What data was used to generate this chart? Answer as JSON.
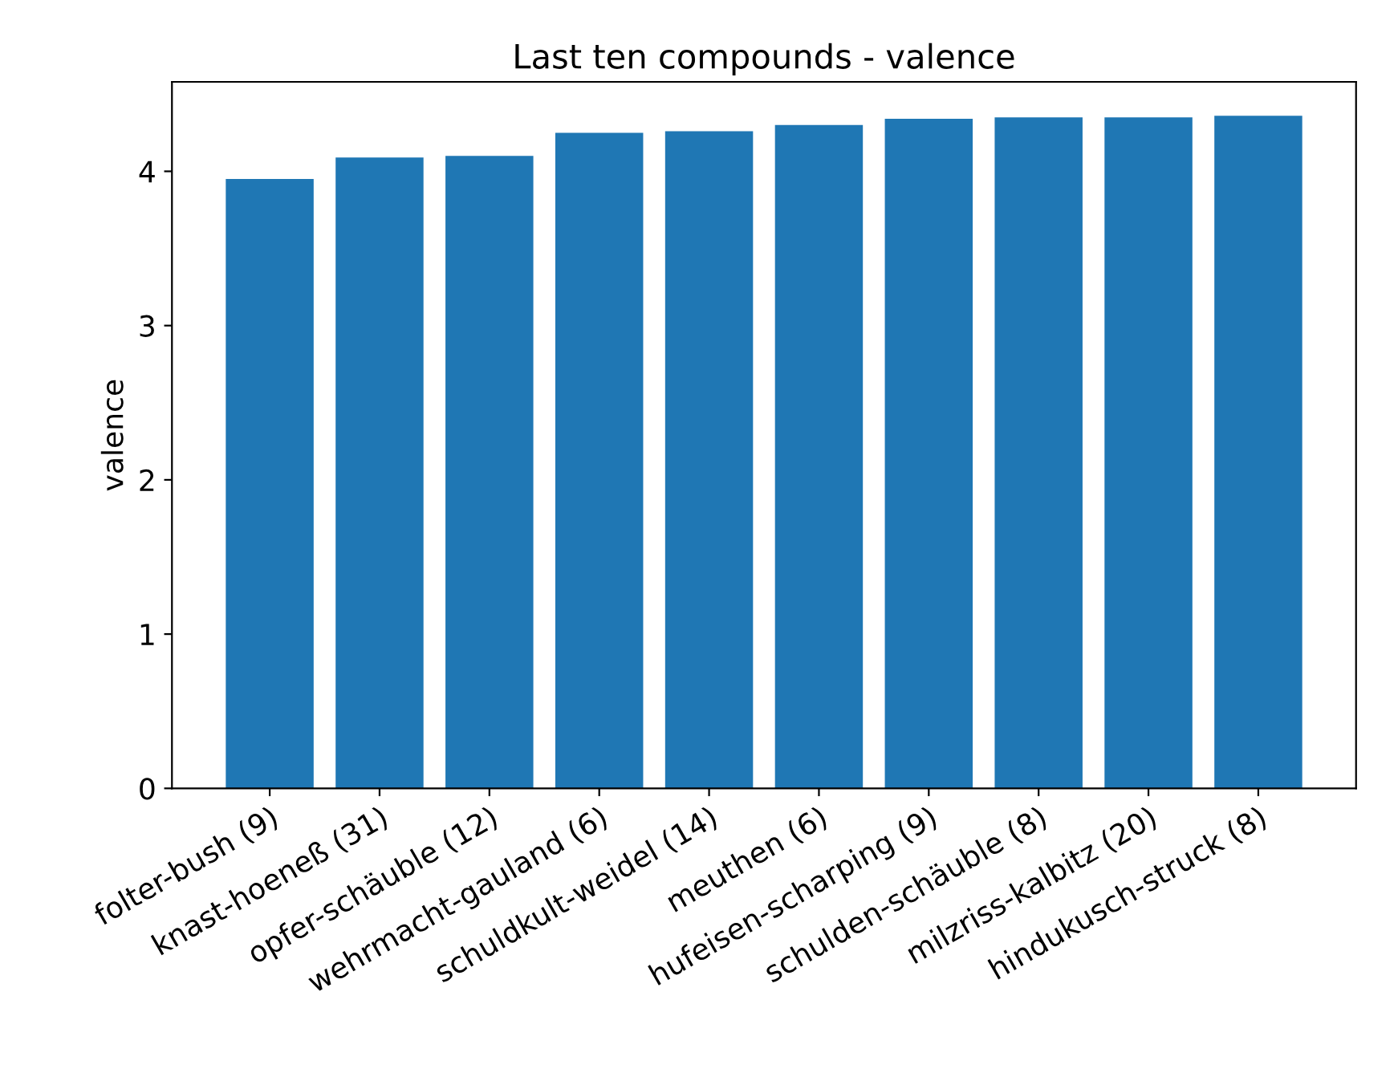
{
  "chart_data": {
    "type": "bar",
    "title": "Last ten compounds - valence",
    "ylabel": "valence",
    "categories": [
      "folter-bush (9)",
      "knast-hoeneß (31)",
      "opfer-schäuble (12)",
      "wehrmacht-gauland (6)",
      "schuldkult-weidel (14)",
      "meuthen (6)",
      "hufeisen-scharping (9)",
      "schulden-schäuble (8)",
      "milzriss-kalbitz (20)",
      "hindukusch-struck (8)"
    ],
    "values": [
      3.95,
      4.09,
      4.1,
      4.25,
      4.26,
      4.3,
      4.34,
      4.35,
      4.35,
      4.36
    ],
    "color": "#1f77b4",
    "ylim": [
      0,
      4.58
    ],
    "yticks": [
      0,
      1,
      2,
      3,
      4
    ],
    "grid": false
  }
}
